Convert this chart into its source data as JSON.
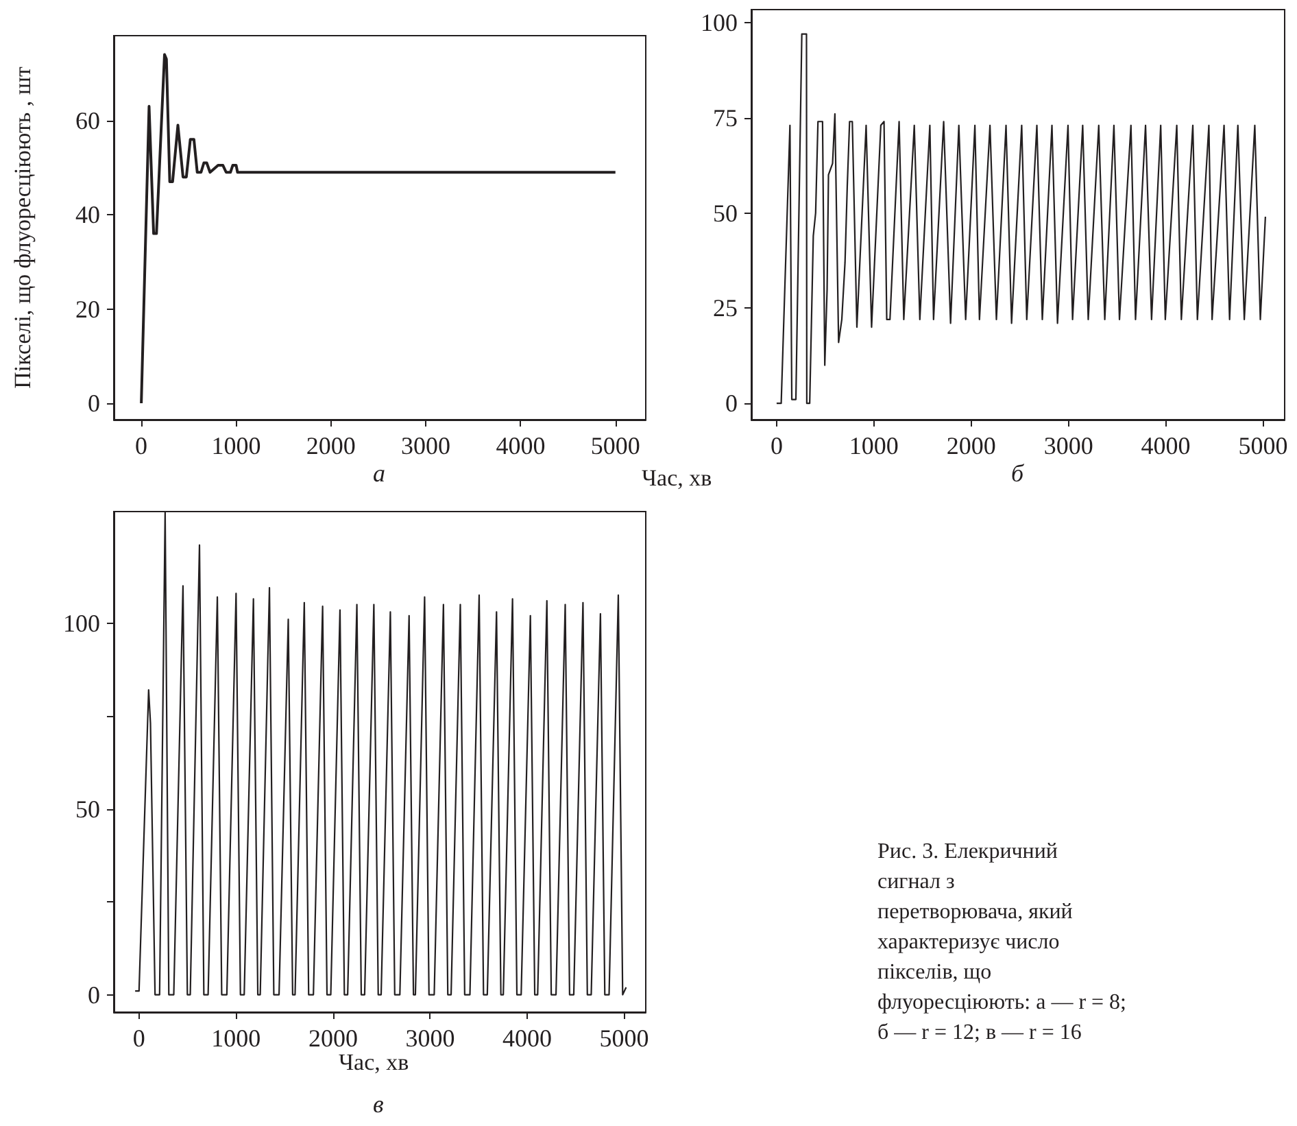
{
  "chart_data": [
    {
      "type": "line",
      "title": "а",
      "xlabel": "Час, хв",
      "ylabel": "Пікселі, що флуоресціюють , шт",
      "marker": "none",
      "xlim": [
        -290,
        5320
      ],
      "ylim": [
        -3.5,
        78
      ],
      "xticks": [
        0,
        1000,
        2000,
        3000,
        4000,
        5000
      ],
      "yticks": [
        0,
        20,
        40,
        60
      ],
      "x": [
        0,
        82,
        130,
        160,
        245,
        265,
        300,
        330,
        386,
        440,
        475,
        517,
        555,
        590,
        630,
        660,
        690,
        725,
        810,
        860,
        895,
        940,
        965,
        1000,
        1015,
        5000
      ],
      "series": [
        {
          "color": "#231f20",
          "values": [
            0,
            63,
            36,
            36,
            74,
            73,
            47,
            47,
            59,
            48,
            48,
            56,
            56,
            49,
            49,
            51,
            51,
            49,
            50.5,
            50.5,
            49,
            49,
            50.5,
            50.5,
            49,
            49
          ]
        }
      ]
    },
    {
      "type": "line",
      "title": "б",
      "marker": "none",
      "xlim": [
        -260,
        5222
      ],
      "ylim": [
        -4.3,
        103.4
      ],
      "xticks": [
        0,
        1000,
        2000,
        3000,
        4000,
        5000
      ],
      "yticks": [
        0,
        25,
        50,
        75,
        100
      ],
      "x": [
        0,
        47,
        137,
        156,
        198,
        259,
        307,
        310,
        340,
        377,
        401,
        425,
        472,
        495,
        519,
        533,
        575,
        599,
        637,
        670,
        703,
        726,
        750,
        778,
        825,
        920,
        976,
        1071,
        1104,
        1132,
        1165,
        1259,
        1307,
        1415,
        1472,
        1575,
        1613,
        1717,
        1788,
        1873,
        1943,
        2038,
        2085,
        2193,
        2259,
        2358,
        2415,
        2519,
        2571,
        2675,
        2731,
        2830,
        2887,
        2995,
        3042,
        3146,
        3203,
        3311,
        3373,
        3467,
        3524,
        3642,
        3689,
        3792,
        3854,
        3948,
        3995,
        4113,
        4160,
        4278,
        4325,
        4443,
        4476,
        4599,
        4656,
        4741,
        4807,
        4915,
        4972,
        5024
      ],
      "series": [
        {
          "color": "#231f20",
          "values": [
            0,
            0,
            73,
            1,
            1,
            97,
            97,
            0,
            0,
            44,
            50,
            74,
            74,
            10,
            30,
            60,
            63,
            76,
            16,
            22,
            37,
            57,
            74,
            74,
            20,
            73,
            20,
            73,
            74,
            22,
            22,
            74,
            22,
            73,
            22,
            73,
            22,
            74,
            21,
            73,
            22,
            73,
            22,
            73,
            22,
            73,
            21,
            73,
            22,
            73,
            22,
            73,
            21,
            73,
            22,
            73,
            22,
            73,
            22,
            73,
            22,
            73,
            22,
            73,
            22,
            73,
            22,
            73,
            22,
            73,
            22,
            73,
            22,
            73,
            22,
            73,
            22,
            73,
            22,
            49
          ]
        }
      ]
    },
    {
      "type": "line",
      "title": "в",
      "xlabel": "Час, хв",
      "marker": "none",
      "xlim": [
        -260,
        5222
      ],
      "ylim": [
        -4.7,
        130
      ],
      "xticks": [
        0,
        1000,
        2000,
        3000,
        4000,
        5000
      ],
      "yticks": [
        0,
        {
          "value": 25,
          "label": null
        },
        50,
        {
          "value": 75,
          "label": null
        },
        100
      ],
      "annotations": [
        "Рис. 3. Елекричний сигнал з перетворювача, який характеризує число пікселів, що флуоресціюють: а — r = 8; б — r = 12; в — r = 16"
      ],
      "x": [
        -40,
        0,
        99,
        118,
        165,
        212,
        269,
        307,
        358,
        453,
        498,
        528,
        623,
        668,
        712,
        807,
        852,
        905,
        1000,
        1045,
        1084,
        1179,
        1224,
        1249,
        1344,
        1389,
        1443,
        1538,
        1583,
        1608,
        1703,
        1748,
        1797,
        1892,
        1937,
        1976,
        2071,
        2116,
        2150,
        2245,
        2290,
        2325,
        2420,
        2465,
        2495,
        2590,
        2635,
        2688,
        2783,
        2828,
        2848,
        2943,
        2988,
        3042,
        3137,
        3182,
        3216,
        3311,
        3356,
        3410,
        3505,
        3550,
        3589,
        3684,
        3729,
        3754,
        3849,
        3894,
        3938,
        4033,
        4078,
        4108,
        4203,
        4248,
        4297,
        4392,
        4437,
        4480,
        4575,
        4620,
        4660,
        4755,
        4800,
        4844,
        4939,
        4984,
        5020
      ],
      "series": [
        {
          "color": "#231f20",
          "values": [
            1,
            1,
            82,
            73,
            0,
            0,
            130,
            0,
            0,
            110,
            0,
            0,
            121,
            0,
            0,
            107,
            0,
            0,
            108,
            0,
            0,
            106.5,
            0,
            0,
            109.5,
            0,
            0,
            101,
            0,
            0,
            105.5,
            0,
            0,
            104.5,
            0,
            0,
            103.5,
            0,
            0,
            105,
            0,
            0,
            105,
            0,
            0,
            103,
            0,
            0,
            102,
            0,
            0,
            107,
            0,
            0,
            105,
            0,
            0,
            105,
            0,
            0,
            107.5,
            0,
            0,
            103,
            0,
            0,
            106.5,
            0,
            0,
            102,
            0,
            0,
            106,
            0,
            0,
            105,
            0,
            0,
            105.5,
            0,
            0,
            102.5,
            0,
            0,
            107.5,
            0,
            2
          ]
        }
      ]
    }
  ]
}
